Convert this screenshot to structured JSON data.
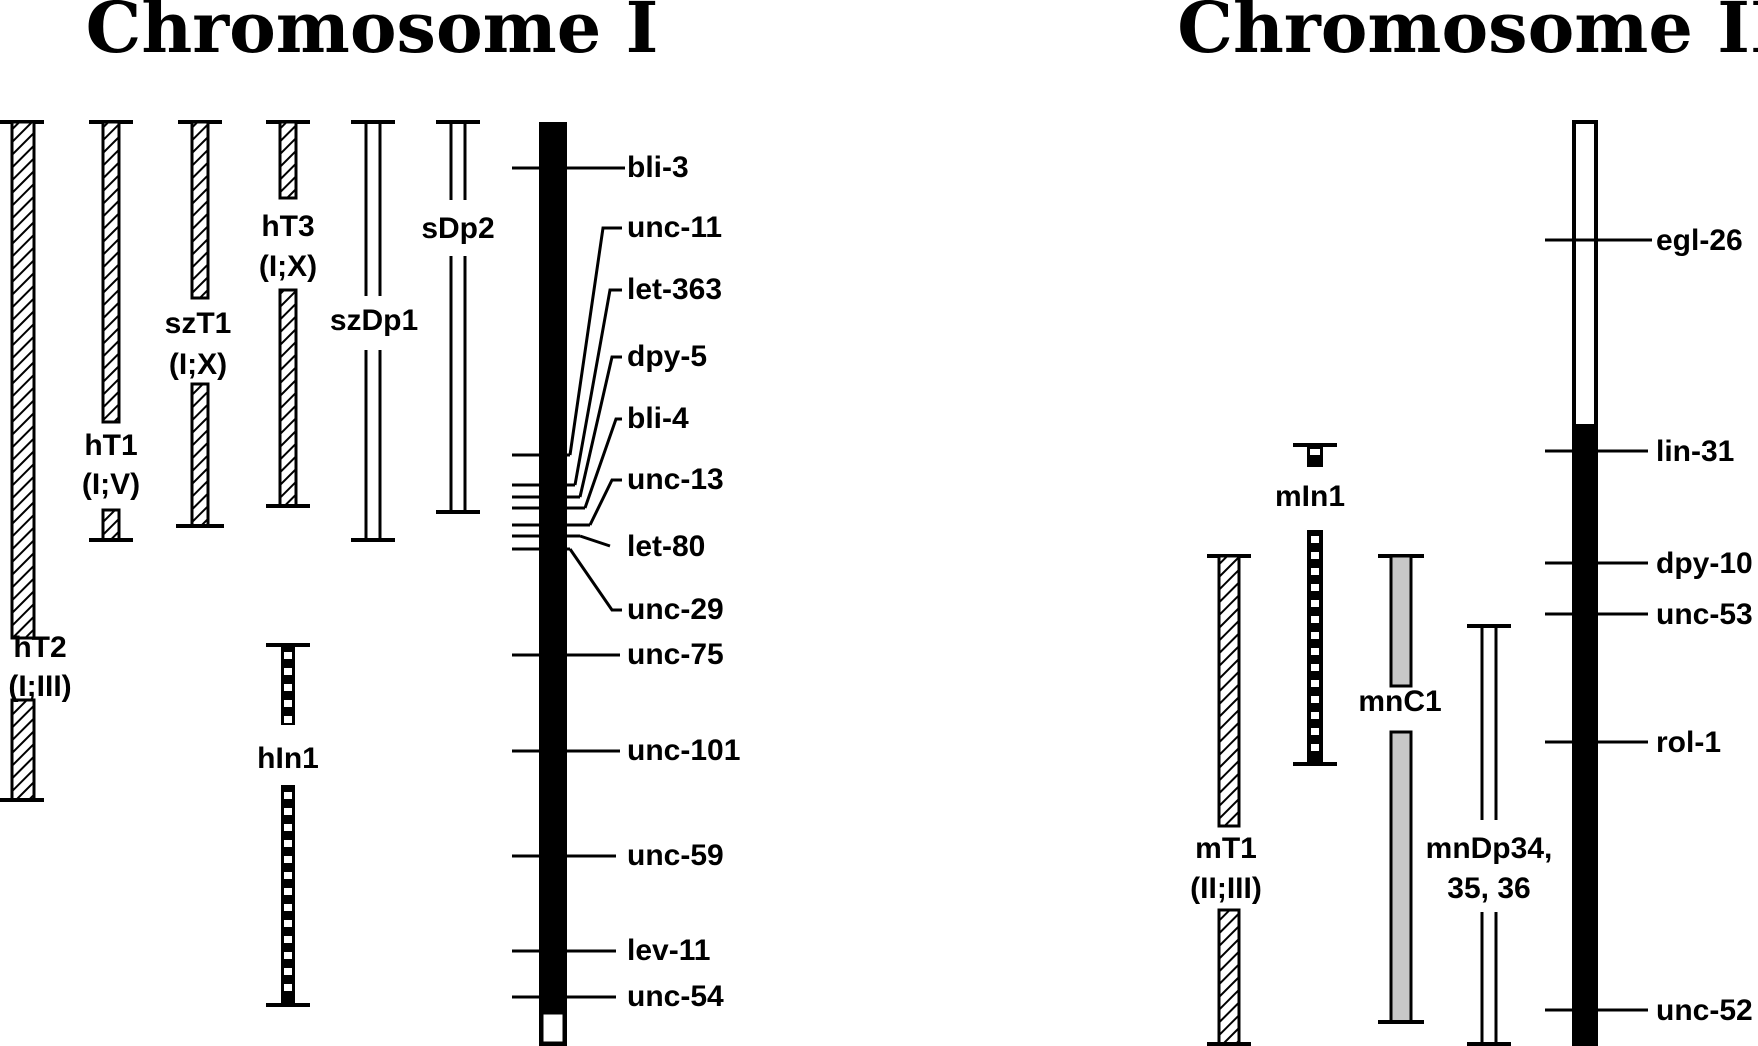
{
  "chromosome_1": {
    "title": "Chromosome I",
    "genes": [
      "bli-3",
      "unc-11",
      "let-363",
      "dpy-5",
      "bli-4",
      "unc-13",
      "let-80",
      "unc-29",
      "unc-75",
      "unc-101",
      "unc-59",
      "lev-11",
      "unc-54"
    ],
    "rearrangements": {
      "ht2": [
        "hT2",
        "(I;III)"
      ],
      "ht1": [
        "hT1",
        "(I;V)"
      ],
      "szt1": [
        "szT1",
        "(I;X)"
      ],
      "ht3": [
        "hT3",
        "(I;X)"
      ],
      "szdp1": [
        "szDp1"
      ],
      "sdp2": [
        "sDp2"
      ],
      "hin1": [
        "hIn1"
      ]
    }
  },
  "chromosome_2": {
    "title": "Chromosome II",
    "genes": [
      "egl-26",
      "lin-31",
      "dpy-10",
      "unc-53",
      "rol-1",
      "unc-52"
    ],
    "rearrangements": {
      "mt1": [
        "mT1",
        "(II;III)"
      ],
      "min1": [
        "mIn1"
      ],
      "mnc1": [
        "mnC1"
      ],
      "mndp": [
        "mnDp34,",
        "35, 36"
      ]
    }
  },
  "colors": {
    "ink": "#000000",
    "paper": "#ffffff",
    "shade": "#c8c8c8"
  },
  "styles": {
    "hatched": "translocation",
    "double_line": "duplication",
    "ladder": "inversion",
    "gray": "balancer"
  }
}
